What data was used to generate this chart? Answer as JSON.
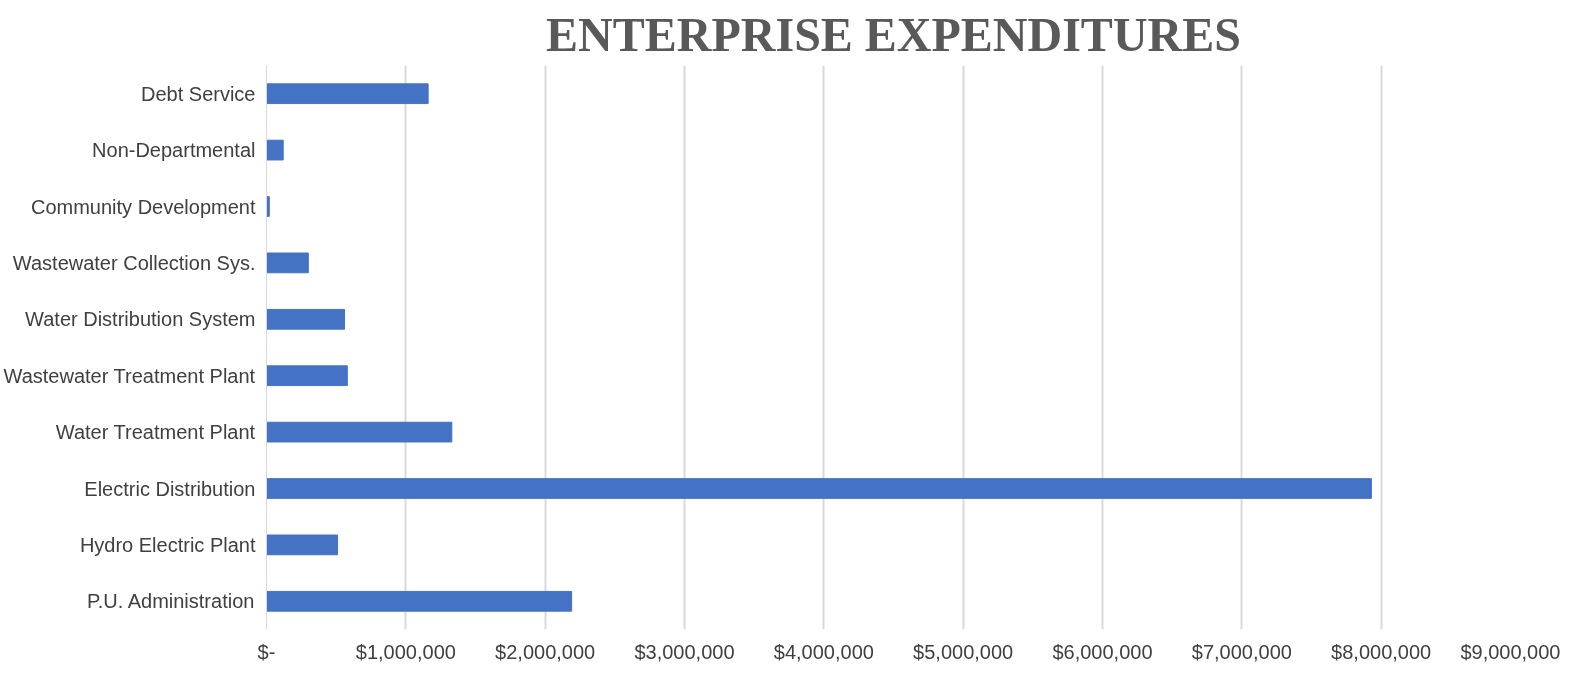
{
  "chart_data": {
    "type": "bar",
    "orientation": "horizontal",
    "title": "ENTERPRISE EXPENDITURES",
    "categories": [
      "Debt Service",
      "Non-Departmental",
      "Community Development",
      "Wastewater Collection Sys.",
      "Water Distribution System",
      "Wastewater Treatment Plant",
      "Water Treatment Plant",
      "Electric Distribution",
      "Hydro Electric Plant",
      "P.U. Administration"
    ],
    "values": [
      1160000,
      120000,
      20000,
      300000,
      560000,
      580000,
      1330000,
      7930000,
      510000,
      2190000
    ],
    "color": "#4472c4",
    "xlim": [
      0,
      9000000
    ],
    "xticks": [
      {
        "value": 0,
        "label": "$-"
      },
      {
        "value": 1000000,
        "label": "$1,000,000"
      },
      {
        "value": 2000000,
        "label": "$2,000,000"
      },
      {
        "value": 3000000,
        "label": "$3,000,000"
      },
      {
        "value": 4000000,
        "label": "$4,000,000"
      },
      {
        "value": 5000000,
        "label": "$5,000,000"
      },
      {
        "value": 6000000,
        "label": "$6,000,000"
      },
      {
        "value": 7000000,
        "label": "$7,000,000"
      },
      {
        "value": 8000000,
        "label": "$8,000,000"
      },
      {
        "value": 9000000,
        "label": "$9,000,000"
      }
    ],
    "grid": "x"
  }
}
